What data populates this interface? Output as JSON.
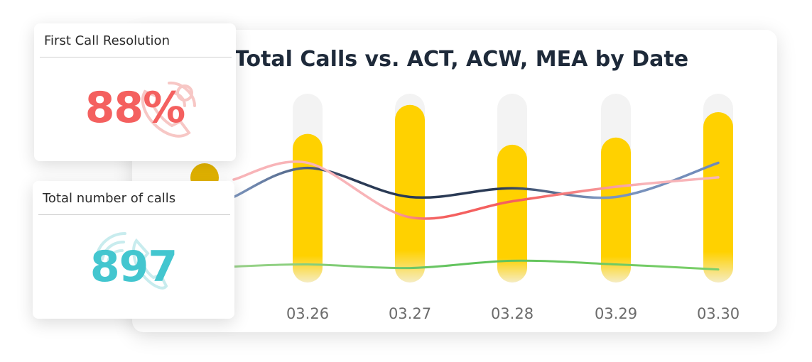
{
  "chart_data": {
    "type": "bar",
    "title": "Total Calls vs. ACT, ACW, MEA by Date",
    "categories": [
      "03.26",
      "03.27",
      "03.28",
      "03.29",
      "03.30"
    ],
    "series": [
      {
        "values": [
          205,
          245,
          190,
          200,
          235
        ]
      },
      {
        "values": [
          158,
          118,
          130,
          118,
          165
        ]
      },
      {
        "values": [
          165,
          90,
          112,
          132,
          145
        ]
      },
      {
        "values": [
          25,
          20,
          30,
          25,
          18
        ]
      }
    ],
    "ylim": [
      0,
      280
    ],
    "colors": {
      "bars": "#ffd100",
      "bar_track": "#f3f3f3",
      "line_dark_blue": "#2a3a55",
      "line_light_blue": "#7d96bf",
      "line_coral": "#f4605f",
      "line_pink": "#f8b4b8",
      "line_green": "#7ccf6a"
    }
  },
  "kpis": {
    "first_call_resolution": {
      "title": "First Call Resolution",
      "value": "88%",
      "icon": "phone-icon",
      "color": "#f4605f"
    },
    "total_calls": {
      "title": "Total number of calls",
      "value": "897",
      "icon": "phone-ringing-icon",
      "color": "#43c6cf"
    }
  }
}
